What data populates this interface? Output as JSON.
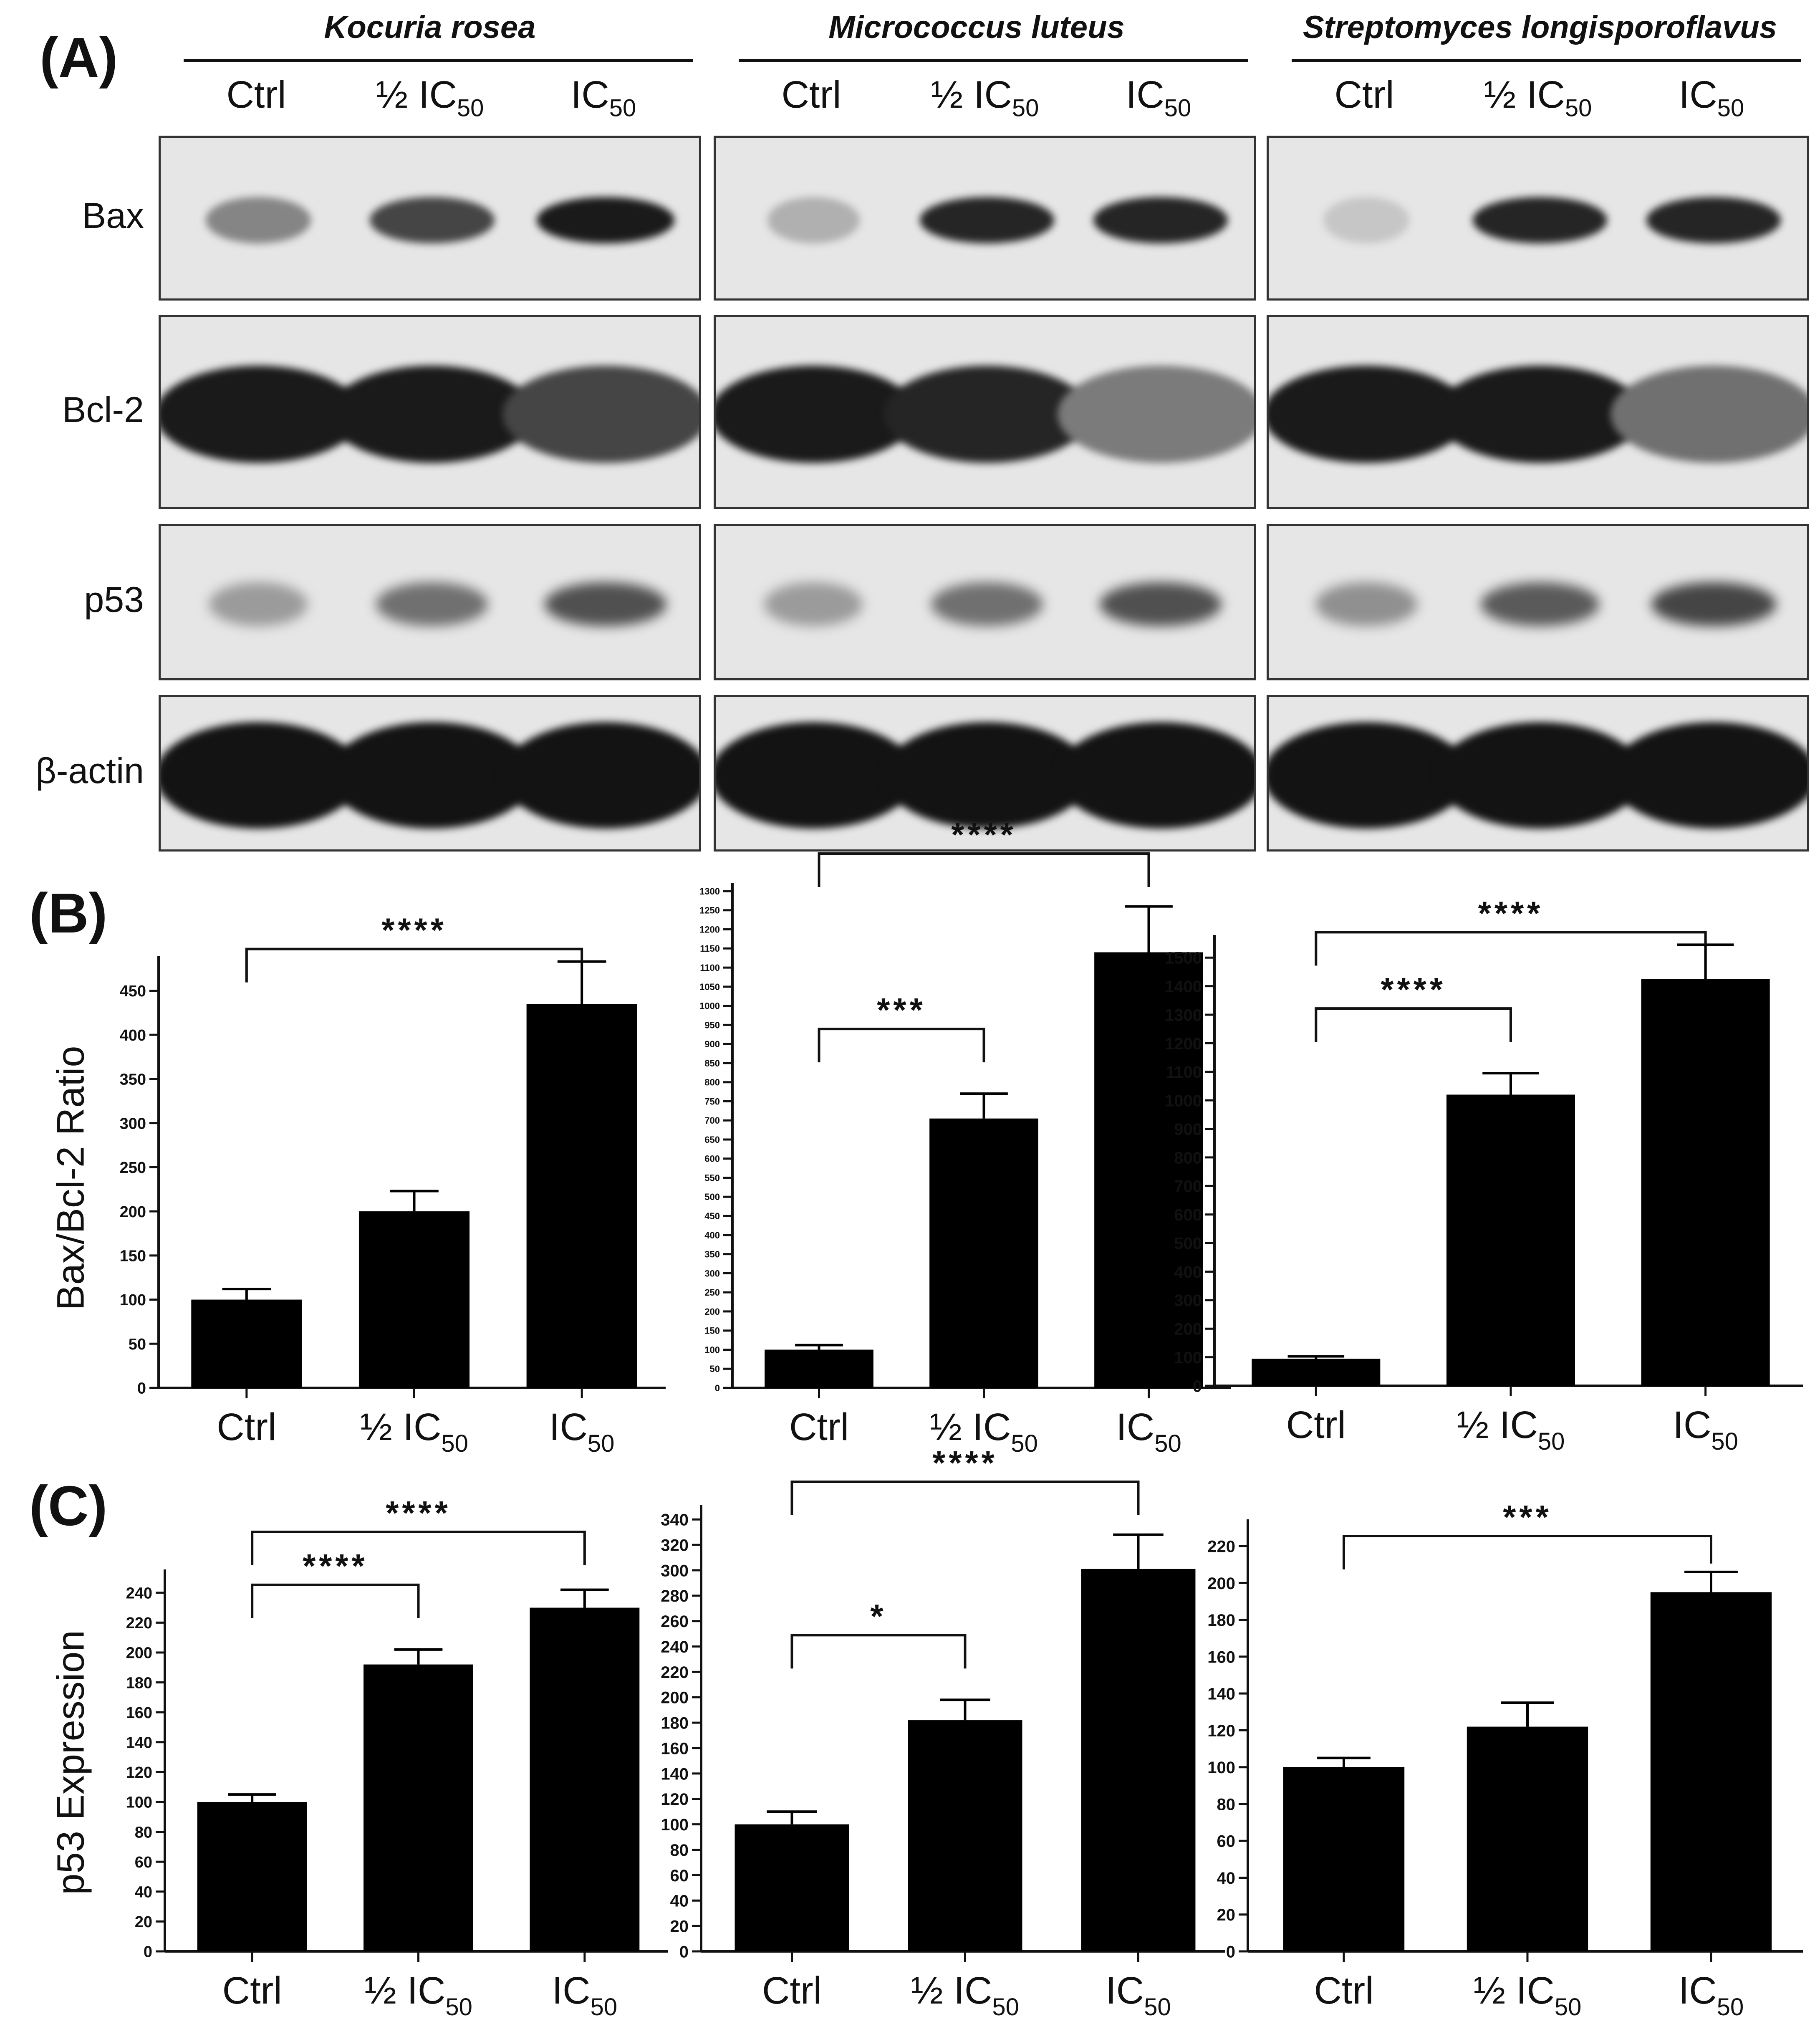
{
  "panels": {
    "a": "(A)",
    "b": "(B)",
    "c": "(C)"
  },
  "species": [
    "Kocuria rosea",
    "Micrococcus luteus",
    "Streptomyces longisporoflavus"
  ],
  "lanes": [
    {
      "main": "Ctrl",
      "sub": ""
    },
    {
      "main": "½ IC",
      "sub": "50"
    },
    {
      "main": "IC",
      "sub": "50"
    }
  ],
  "proteins": [
    "Bax",
    "Bcl-2",
    "p53",
    "β-actin"
  ],
  "blot_intensity": {
    "Bax": [
      [
        0.45,
        0.75,
        0.95
      ],
      [
        0.25,
        0.9,
        0.9
      ],
      [
        0.15,
        0.9,
        0.9
      ]
    ],
    "Bcl-2": [
      [
        0.95,
        0.95,
        0.75
      ],
      [
        0.95,
        0.9,
        0.5
      ],
      [
        0.95,
        0.95,
        0.55
      ]
    ],
    "p53": [
      [
        0.35,
        0.55,
        0.7
      ],
      [
        0.35,
        0.55,
        0.7
      ],
      [
        0.4,
        0.65,
        0.75
      ]
    ],
    "β-actin": [
      [
        0.98,
        0.98,
        0.98
      ],
      [
        0.98,
        0.98,
        0.98
      ],
      [
        0.98,
        0.98,
        0.98
      ]
    ]
  },
  "ylabels": {
    "b": "Bax/Bcl-2 Ratio",
    "c": "p53 Expression"
  },
  "chart_data": [
    {
      "type": "bar",
      "panel": "B",
      "categories": [
        "Ctrl",
        "½ IC50",
        "IC50"
      ],
      "values": [
        100,
        200,
        435
      ],
      "errors": [
        12,
        23,
        48
      ],
      "ylim": [
        0,
        480
      ],
      "yticks": [
        0,
        50,
        100,
        150,
        200,
        250,
        300,
        350,
        400,
        450
      ],
      "ylabel": "Bax/Bcl-2 Ratio",
      "annotations": [
        {
          "from": 0,
          "to": 2,
          "label": "****"
        }
      ]
    },
    {
      "type": "bar",
      "panel": "B",
      "categories": [
        "Ctrl",
        "½ IC50",
        "IC50"
      ],
      "values": [
        100,
        705,
        1140
      ],
      "errors": [
        12,
        65,
        120
      ],
      "ylim": [
        0,
        1300
      ],
      "yticks": [
        0,
        50,
        100,
        150,
        200,
        250,
        300,
        350,
        400,
        450,
        500,
        550,
        600,
        650,
        700,
        750,
        800,
        850,
        900,
        950,
        1000,
        1050,
        1100,
        1150,
        1200,
        1250,
        1300
      ],
      "ylabel": "",
      "annotations": [
        {
          "from": 0,
          "to": 1,
          "label": "***"
        },
        {
          "from": 0,
          "to": 2,
          "label": "****"
        }
      ]
    },
    {
      "type": "bar",
      "panel": "B",
      "categories": [
        "Ctrl",
        "½ IC50",
        "IC50"
      ],
      "values": [
        95,
        1020,
        1425
      ],
      "errors": [
        8,
        75,
        120
      ],
      "ylim": [
        0,
        1550
      ],
      "yticks": [
        0,
        100,
        200,
        300,
        400,
        500,
        600,
        700,
        800,
        900,
        1000,
        1100,
        1200,
        1300,
        1400,
        1500
      ],
      "ylabel": "",
      "annotations": [
        {
          "from": 0,
          "to": 1,
          "label": "****"
        },
        {
          "from": 0,
          "to": 2,
          "label": "****"
        }
      ]
    },
    {
      "type": "bar",
      "panel": "C",
      "categories": [
        "Ctrl",
        "½ IC50",
        "IC50"
      ],
      "values": [
        100,
        192,
        230
      ],
      "errors": [
        5,
        10,
        12
      ],
      "ylim": [
        0,
        250
      ],
      "yticks": [
        0,
        20,
        40,
        60,
        80,
        100,
        120,
        140,
        160,
        180,
        200,
        220,
        240
      ],
      "ylabel": "p53 Expression",
      "annotations": [
        {
          "from": 0,
          "to": 1,
          "label": "****"
        },
        {
          "from": 0,
          "to": 2,
          "label": "****"
        }
      ]
    },
    {
      "type": "bar",
      "panel": "C",
      "categories": [
        "Ctrl",
        "½ IC50",
        "IC50"
      ],
      "values": [
        100,
        182,
        301
      ],
      "errors": [
        10,
        16,
        27
      ],
      "ylim": [
        0,
        345
      ],
      "yticks": [
        0,
        20,
        40,
        60,
        80,
        100,
        120,
        140,
        160,
        180,
        200,
        220,
        240,
        260,
        280,
        300,
        320,
        340
      ],
      "ylabel": "",
      "annotations": [
        {
          "from": 0,
          "to": 1,
          "label": "*"
        },
        {
          "from": 0,
          "to": 2,
          "label": "****"
        }
      ]
    },
    {
      "type": "bar",
      "panel": "C",
      "categories": [
        "Ctrl",
        "½ IC50",
        "IC50"
      ],
      "values": [
        100,
        122,
        195
      ],
      "errors": [
        5,
        13,
        11
      ],
      "ylim": [
        0,
        230
      ],
      "yticks": [
        0,
        20,
        40,
        60,
        80,
        100,
        120,
        140,
        160,
        180,
        200,
        220
      ],
      "ylabel": "",
      "annotations": [
        {
          "from": 0,
          "to": 2,
          "label": "***"
        }
      ]
    }
  ]
}
